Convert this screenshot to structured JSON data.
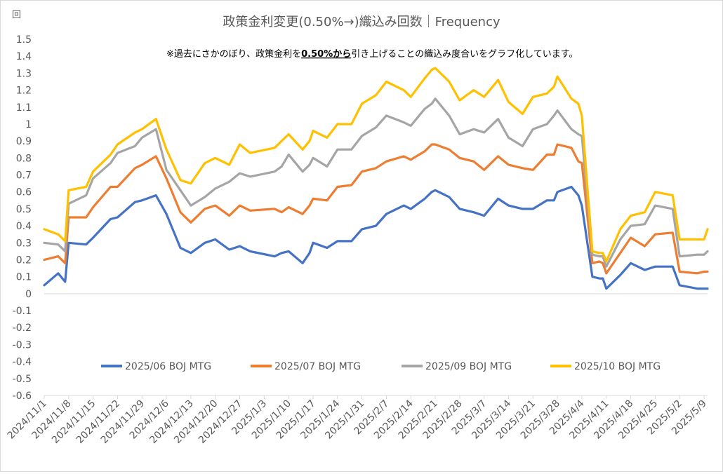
{
  "chart_data": {
    "type": "line",
    "title": "政策金利変更(0.50%→)織込み回数｜Frequency",
    "unit_label": "回",
    "note_prefix": "※過去にさかのぼり、政策金利を",
    "note_bold": "0.50%から",
    "note_suffix": "引き上げることの織込み度合いをグラフ化しています。",
    "ylim": [
      -0.6,
      1.5
    ],
    "yticks": [
      "1.5",
      "1.4",
      "1.3",
      "1.2",
      "1.1",
      "1",
      "0.9",
      "0.8",
      "0.7",
      "0.6",
      "0.5",
      "0.4",
      "0.3",
      "0.2",
      "0.1",
      "0",
      "-0.1",
      "-0.2",
      "-0.3",
      "-0.4",
      "-0.5",
      "-0.6"
    ],
    "xlim": [
      "2024-11-01",
      "2025-05-10"
    ],
    "xticks": [
      "2024/11/1",
      "2024/11/8",
      "2024/11/15",
      "2024/11/22",
      "2024/11/29",
      "2024/12/6",
      "2024/12/13",
      "2024/12/20",
      "2024/12/27",
      "2025/1/3",
      "2025/1/10",
      "2025/1/17",
      "2025/1/24",
      "2025/1/31",
      "2025/2/7",
      "2025/2/14",
      "2025/2/21",
      "2025/2/28",
      "2025/3/7",
      "2025/3/14",
      "2025/3/21",
      "2025/3/28",
      "2025/4/4",
      "2025/4/11",
      "2025/4/18",
      "2025/4/25",
      "2025/5/2",
      "2025/5/9"
    ],
    "grid": false,
    "legend_position": "bottom-inside",
    "x": [
      "2024-11-01",
      "2024-11-05",
      "2024-11-07",
      "2024-11-08",
      "2024-11-13",
      "2024-11-15",
      "2024-11-20",
      "2024-11-22",
      "2024-11-27",
      "2024-11-29",
      "2024-12-03",
      "2024-12-06",
      "2024-12-10",
      "2024-12-13",
      "2024-12-17",
      "2024-12-20",
      "2024-12-24",
      "2024-12-27",
      "2024-12-30",
      "2025-01-06",
      "2025-01-08",
      "2025-01-10",
      "2025-01-14",
      "2025-01-16",
      "2025-01-17",
      "2025-01-21",
      "2025-01-24",
      "2025-01-28",
      "2025-01-31",
      "2025-02-04",
      "2025-02-07",
      "2025-02-12",
      "2025-02-14",
      "2025-02-18",
      "2025-02-20",
      "2025-02-21",
      "2025-02-25",
      "2025-02-28",
      "2025-03-04",
      "2025-03-07",
      "2025-03-11",
      "2025-03-14",
      "2025-03-18",
      "2025-03-21",
      "2025-03-25",
      "2025-03-27",
      "2025-03-28",
      "2025-04-01",
      "2025-04-03",
      "2025-04-04",
      "2025-04-07",
      "2025-04-09",
      "2025-04-10",
      "2025-04-11",
      "2025-04-15",
      "2025-04-18",
      "2025-04-22",
      "2025-04-25",
      "2025-04-30",
      "2025-05-02",
      "2025-05-07",
      "2025-05-09",
      "2025-05-10"
    ],
    "series": [
      {
        "name": "2025/06 BOJ MTG",
        "color": "#4472C4",
        "values": [
          0.05,
          0.12,
          0.07,
          0.3,
          0.29,
          0.33,
          0.44,
          0.45,
          0.54,
          0.55,
          0.58,
          0.47,
          0.27,
          0.24,
          0.3,
          0.32,
          0.26,
          0.28,
          0.25,
          0.22,
          0.24,
          0.25,
          0.18,
          0.24,
          0.3,
          0.27,
          0.31,
          0.31,
          0.38,
          0.4,
          0.47,
          0.52,
          0.5,
          0.56,
          0.6,
          0.61,
          0.57,
          0.5,
          0.48,
          0.46,
          0.56,
          0.52,
          0.5,
          0.5,
          0.55,
          0.55,
          0.6,
          0.63,
          0.58,
          0.52,
          0.1,
          0.09,
          0.09,
          0.03,
          0.11,
          0.18,
          0.14,
          0.16,
          0.16,
          0.05,
          0.03,
          0.03,
          0.03
        ]
      },
      {
        "name": "2025/07 BOJ MTG",
        "color": "#ED7D31",
        "values": [
          0.2,
          0.22,
          0.18,
          0.45,
          0.45,
          0.51,
          0.63,
          0.63,
          0.74,
          0.76,
          0.81,
          0.68,
          0.48,
          0.42,
          0.5,
          0.52,
          0.46,
          0.52,
          0.49,
          0.5,
          0.48,
          0.51,
          0.47,
          0.52,
          0.56,
          0.55,
          0.63,
          0.64,
          0.72,
          0.74,
          0.78,
          0.81,
          0.79,
          0.84,
          0.88,
          0.88,
          0.85,
          0.8,
          0.78,
          0.73,
          0.81,
          0.76,
          0.74,
          0.73,
          0.82,
          0.82,
          0.88,
          0.86,
          0.78,
          0.77,
          0.18,
          0.19,
          0.18,
          0.12,
          0.24,
          0.33,
          0.28,
          0.35,
          0.36,
          0.13,
          0.12,
          0.13,
          0.13
        ]
      },
      {
        "name": "2025/09 BOJ MTG",
        "color": "#A5A5A5",
        "values": [
          0.3,
          0.29,
          0.25,
          0.53,
          0.58,
          0.68,
          0.77,
          0.83,
          0.87,
          0.92,
          0.97,
          0.73,
          0.61,
          0.52,
          0.57,
          0.62,
          0.66,
          0.71,
          0.69,
          0.72,
          0.75,
          0.82,
          0.72,
          0.76,
          0.8,
          0.75,
          0.85,
          0.85,
          0.93,
          0.98,
          1.05,
          1.01,
          0.99,
          1.09,
          1.12,
          1.15,
          1.05,
          0.94,
          0.97,
          0.95,
          1.03,
          0.92,
          0.87,
          0.97,
          1.0,
          1.05,
          1.08,
          0.97,
          0.94,
          0.93,
          0.23,
          0.22,
          0.22,
          0.16,
          0.32,
          0.4,
          0.41,
          0.52,
          0.5,
          0.22,
          0.23,
          0.23,
          0.25
        ]
      },
      {
        "name": "2025/10 BOJ MTG",
        "color": "#FFC000",
        "values": [
          0.38,
          0.35,
          0.31,
          0.61,
          0.63,
          0.72,
          0.82,
          0.88,
          0.95,
          0.97,
          1.03,
          0.85,
          0.67,
          0.65,
          0.77,
          0.8,
          0.76,
          0.88,
          0.83,
          0.86,
          0.9,
          0.94,
          0.85,
          0.9,
          0.96,
          0.92,
          1.0,
          1.0,
          1.12,
          1.17,
          1.25,
          1.2,
          1.16,
          1.27,
          1.32,
          1.33,
          1.25,
          1.14,
          1.2,
          1.16,
          1.26,
          1.13,
          1.06,
          1.16,
          1.18,
          1.22,
          1.28,
          1.15,
          1.12,
          1.05,
          0.25,
          0.24,
          0.24,
          0.19,
          0.38,
          0.46,
          0.48,
          0.6,
          0.58,
          0.32,
          0.32,
          0.32,
          0.38
        ]
      }
    ]
  }
}
